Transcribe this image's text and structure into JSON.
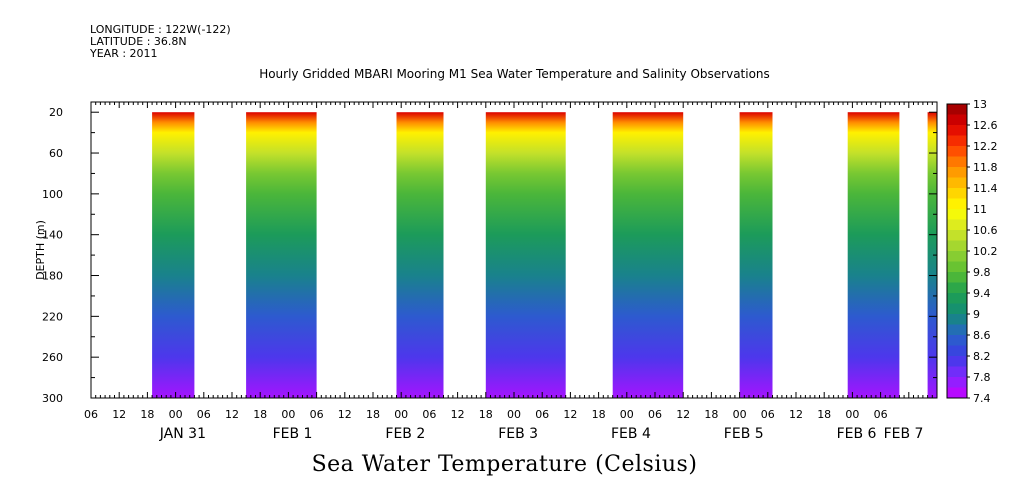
{
  "header": {
    "longitude": "LONGITUDE : 122W(-122)",
    "latitude": "LATITUDE : 36.8N",
    "year": "YEAR : 2011"
  },
  "chart_data": {
    "type": "heatmap",
    "title": "Hourly Gridded MBARI Mooring M1 Sea Water Temperature and Salinity Observations",
    "main_label": "Sea Water Temperature (Celsius)",
    "ylabel": "DEPTH (m)",
    "y_ticks": [
      20,
      60,
      100,
      140,
      180,
      220,
      260,
      300
    ],
    "ylim": [
      10,
      300
    ],
    "y_inverted": true,
    "x_axis_hours": [
      0,
      180
    ],
    "x_hour_ticks": [
      "06",
      "12",
      "18",
      "00",
      "06",
      "12",
      "18",
      "00",
      "06",
      "12",
      "18",
      "00",
      "06",
      "12",
      "18",
      "00",
      "06",
      "12",
      "18",
      "00",
      "06",
      "12",
      "18",
      "00",
      "06",
      "12",
      "18",
      "00",
      "06"
    ],
    "x_day_labels": [
      {
        "text": "JAN 31",
        "hour": 24
      },
      {
        "text": "FEB  1",
        "hour": 48
      },
      {
        "text": "FEB  2",
        "hour": 72
      },
      {
        "text": "FEB  3",
        "hour": 96
      },
      {
        "text": "FEB  4",
        "hour": 120
      },
      {
        "text": "FEB  5",
        "hour": 144
      },
      {
        "text": "FEB  6",
        "hour": 168
      },
      {
        "text": "FEB  7",
        "hour": 178
      }
    ],
    "data_blocks_hours": [
      [
        13,
        22
      ],
      [
        33,
        48
      ],
      [
        65,
        75
      ],
      [
        84,
        101
      ],
      [
        111,
        126
      ],
      [
        138,
        145
      ],
      [
        161,
        172
      ],
      [
        178,
        180
      ]
    ],
    "depth_temperature_profile": [
      {
        "depth": 20,
        "temp": 12.6
      },
      {
        "depth": 30,
        "temp": 11.8
      },
      {
        "depth": 40,
        "temp": 11.1
      },
      {
        "depth": 60,
        "temp": 10.5
      },
      {
        "depth": 80,
        "temp": 10.0
      },
      {
        "depth": 100,
        "temp": 9.7
      },
      {
        "depth": 140,
        "temp": 9.3
      },
      {
        "depth": 180,
        "temp": 8.9
      },
      {
        "depth": 220,
        "temp": 8.5
      },
      {
        "depth": 260,
        "temp": 8.1
      },
      {
        "depth": 300,
        "temp": 7.6
      }
    ],
    "colorbar": {
      "labels": [
        "13",
        "12.6",
        "12.2",
        "11.8",
        "11.4",
        "11",
        "10.6",
        "10.2",
        "9.8",
        "9.4",
        "9",
        "8.6",
        "8.2",
        "7.8",
        "7.4"
      ],
      "min": 7.4,
      "max": 13,
      "step": 0.2
    }
  }
}
